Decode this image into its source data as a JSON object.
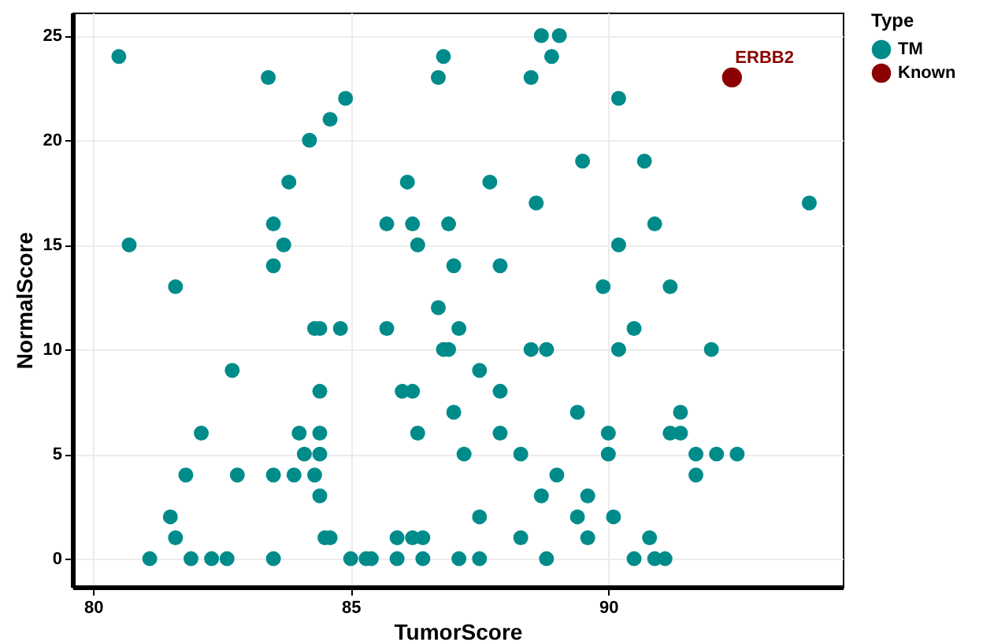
{
  "chart_data": {
    "type": "scatter",
    "xlabel": "TumorScore",
    "ylabel": "NormalScore",
    "legend_title": "Type",
    "legend": "right",
    "grid": true,
    "marker": "circle",
    "xlim": [
      79.6,
      94.55
    ],
    "ylim": [
      -1.35,
      26.1
    ],
    "xticks": [
      80,
      85,
      90
    ],
    "yticks": [
      0,
      5,
      10,
      15,
      20,
      25
    ],
    "series": [
      {
        "name": "TM",
        "color": "#008b8b",
        "x": [
          80.5,
          80.7,
          81.6,
          83.4,
          84.9,
          84.6,
          84.2,
          83.8,
          83.5,
          83.7,
          83.5,
          86.1,
          85.7,
          86.2,
          86.9,
          86.3,
          87.0,
          86.8,
          86.7,
          86.7,
          88.7,
          89.05,
          88.9,
          88.5,
          90.2,
          89.5,
          90.7,
          87.7,
          88.6,
          93.9,
          90.9,
          90.2,
          87.9,
          89.9,
          91.2,
          84.3,
          84.4,
          84.8,
          85.7,
          87.1,
          86.8,
          86.9,
          82.7,
          84.4,
          86.0,
          86.2,
          87.0,
          82.1,
          84.0,
          84.4,
          86.3,
          84.1,
          84.4,
          87.2,
          81.8,
          82.8,
          83.5,
          83.9,
          84.3,
          84.4,
          81.5,
          81.6,
          84.5,
          84.6,
          85.9,
          86.2,
          86.4,
          81.1,
          81.9,
          82.3,
          82.6,
          83.5,
          85.0,
          85.3,
          85.4,
          85.9,
          86.4,
          87.1,
          90.5,
          88.5,
          88.8,
          90.2,
          92.0,
          87.5,
          87.9,
          89.4,
          91.4,
          87.9,
          90.0,
          91.2,
          91.4,
          88.3,
          90.0,
          91.7,
          92.1,
          92.5,
          89.0,
          91.7,
          88.7,
          89.6,
          87.5,
          89.4,
          90.1,
          88.3,
          89.6,
          90.8,
          87.5,
          88.8,
          90.5,
          90.9,
          91.1
        ],
        "values": [
          24,
          15,
          13,
          23,
          22,
          21,
          20,
          18,
          16,
          15,
          14,
          18,
          16,
          16,
          16,
          15,
          14,
          24,
          23,
          12,
          25,
          25,
          24,
          23,
          22,
          19,
          19,
          18,
          17,
          17,
          16,
          15,
          14,
          13,
          13,
          11,
          11,
          11,
          11,
          11,
          10,
          10,
          9,
          8,
          8,
          8,
          7,
          6,
          6,
          6,
          6,
          5,
          5,
          5,
          4,
          4,
          4,
          4,
          4,
          3,
          2,
          1,
          1,
          1,
          1,
          1,
          1,
          0,
          0,
          0,
          0,
          0,
          0,
          0,
          0,
          0,
          0,
          0,
          11,
          10,
          10,
          10,
          10,
          9,
          8,
          7,
          7,
          6,
          6,
          6,
          6,
          5,
          5,
          5,
          5,
          5,
          4,
          4,
          3,
          3,
          2,
          2,
          2,
          1,
          1,
          1,
          0,
          0,
          0,
          0,
          0
        ]
      },
      {
        "name": "Known",
        "color": "#8b0000",
        "x": [
          92.4
        ],
        "values": [
          23
        ]
      }
    ],
    "annotations": [
      {
        "text": "ERBB2",
        "x": 92.4,
        "y": 23
      }
    ]
  }
}
